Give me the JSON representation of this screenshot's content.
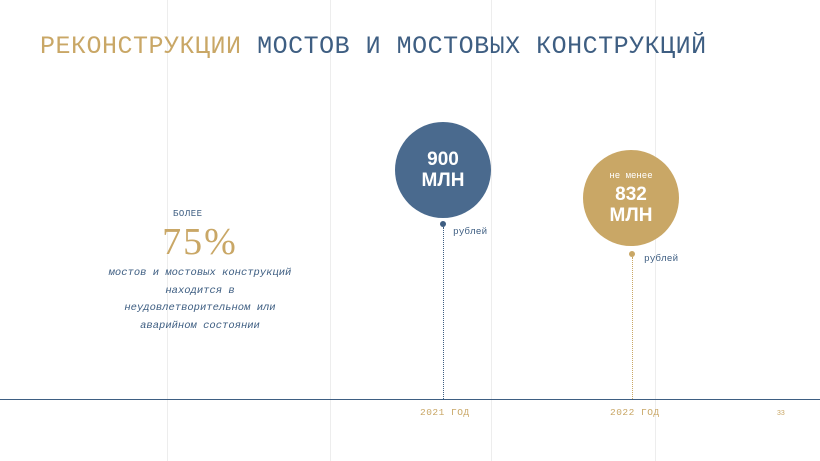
{
  "title": {
    "accent": "РЕКОНСТРУКЦИИ",
    "rest": "МОСТОВ И МОСТОВЫХ КОНСТРУКЦИЙ"
  },
  "stat": {
    "prefix": "БОЛЕЕ",
    "value": "75%",
    "description": "мостов и мостовых конструкций находится в неудовлетворительном или аварийном состоянии"
  },
  "milestones": [
    {
      "prefix": "",
      "amount": "900",
      "unit_big": "МЛН",
      "currency": "рублей",
      "year": "2021 ГОД",
      "color": "#4a6a8e"
    },
    {
      "prefix": "не менее",
      "amount": "832",
      "unit_big": "МЛН",
      "currency": "рублей",
      "year": "2022 ГОД",
      "color": "#c9a766"
    }
  ],
  "page_number": "33",
  "colors": {
    "blue": "#3e5e82",
    "gold": "#c9a766",
    "bubble_blue": "#4a6a8e"
  }
}
